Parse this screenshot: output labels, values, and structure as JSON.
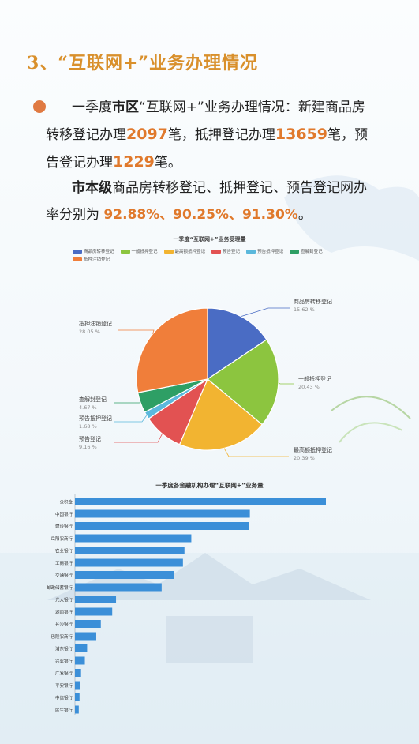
{
  "heading": "3、“互联网+”业务办理情况",
  "para1": {
    "pre": "一季度",
    "region": "市区",
    "mid1": "“互联网+”业务办理情况：新建商品房转移登记办理",
    "n1": "2097",
    "mid2": "笔，抵押登记办理",
    "n2": "13659",
    "mid3": "笔，预告登记办理",
    "n3": "1229",
    "end": "笔。"
  },
  "para2": {
    "bold": "市本级",
    "text": "商品房转移登记、抵押登记、预告登记网办率分别为 ",
    "rates": "92.88%、90.25%、91.30%",
    "end": "。"
  },
  "colors": {
    "accent": "#e0792c",
    "heading": "#d9902c",
    "bar": "#3b8fd8"
  },
  "pie_title": "一季度“互联网+”业务受理量",
  "bar_title": "一季度各金融机构办理“互联网+”业务量",
  "chart_data": [
    {
      "type": "pie",
      "title": "一季度“互联网+”业务受理量",
      "legend_position": "top",
      "legend": [
        "商品房转移登记",
        "一般抵押登记",
        "最高额抵押登记",
        "预告登记",
        "预告抵押登记",
        "查解封登记",
        "抵押注销登记"
      ],
      "slices": [
        {
          "label": "商品房转移登记",
          "value": 15.62,
          "display": "15.62 %",
          "color": "#4a6cc4"
        },
        {
          "label": "一般抵押登记",
          "value": 20.43,
          "display": "20.43 %",
          "color": "#8cc53f"
        },
        {
          "label": "最高额抵押登记",
          "value": 20.39,
          "display": "20.39 %",
          "color": "#f2b431"
        },
        {
          "label": "预告登记",
          "value": 9.16,
          "display": "9.16 %",
          "color": "#e25252"
        },
        {
          "label": "预告抵押登记",
          "value": 1.68,
          "display": "1.68 %",
          "color": "#5bb8dc"
        },
        {
          "label": "查解封登记",
          "value": 4.67,
          "display": "4.67 %",
          "color": "#2e9f65"
        },
        {
          "label": "抵押注销登记",
          "value": 28.05,
          "display": "28.05 %",
          "color": "#f07e3a"
        }
      ]
    },
    {
      "type": "bar",
      "orientation": "horizontal",
      "title": "一季度各金融机构办理“互联网+”业务量",
      "categories": [
        "公积金",
        "中国银行",
        "建设银行",
        "岳阳农商行",
        "农业银行",
        "工商银行",
        "交通银行",
        "邮政储蓄银行",
        "光大银行",
        "湖南银行",
        "长沙银行",
        "巴陵农商行",
        "浦东银行",
        "兴业银行",
        "广发银行",
        "平安银行",
        "中信银行",
        "民生银行"
      ],
      "values": [
        3300,
        2300,
        2290,
        1530,
        1440,
        1420,
        1300,
        1140,
        540,
        490,
        340,
        280,
        160,
        130,
        80,
        70,
        60,
        50
      ]
    }
  ]
}
